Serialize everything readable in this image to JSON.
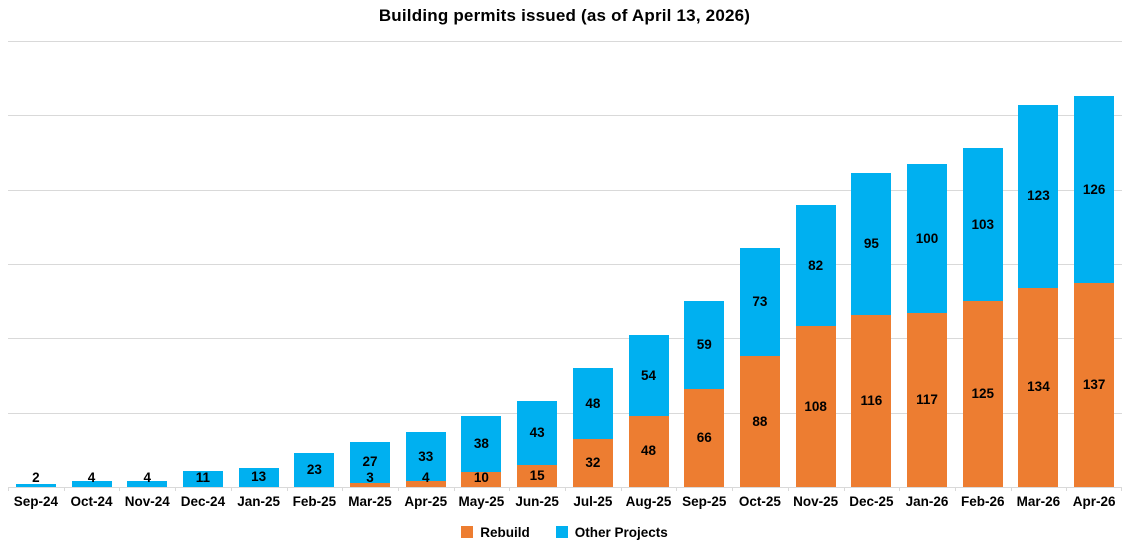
{
  "chart_data": {
    "type": "bar",
    "stacked": true,
    "title": "Building permits issued (as of April 13, 2026)",
    "categories": [
      "Sep-24",
      "Oct-24",
      "Nov-24",
      "Dec-24",
      "Jan-25",
      "Feb-25",
      "Mar-25",
      "Apr-25",
      "May-25",
      "Jun-25",
      "Jul-25",
      "Aug-25",
      "Sep-25",
      "Oct-25",
      "Nov-25",
      "Dec-25",
      "Jan-26",
      "Feb-26",
      "Mar-26",
      "Apr-26"
    ],
    "series": [
      {
        "name": "Rebuild",
        "color": "#ED7D31",
        "values": [
          0,
          0,
          0,
          0,
          0,
          0,
          3,
          4,
          10,
          15,
          32,
          48,
          66,
          88,
          108,
          116,
          117,
          125,
          134,
          137
        ]
      },
      {
        "name": "Other Projects",
        "color": "#00B0F0",
        "values": [
          2,
          4,
          4,
          11,
          13,
          23,
          27,
          33,
          38,
          43,
          48,
          54,
          59,
          73,
          82,
          95,
          100,
          103,
          123,
          126
        ]
      }
    ],
    "xlabel": "",
    "ylabel": "",
    "ylim": [
      0,
      300
    ],
    "gridline_interval": 50,
    "grid": true,
    "y_axis_tick_labels_visible": false,
    "data_labels": true,
    "legend_position": "bottom"
  },
  "colors": {
    "gridline": "#d9d9d9",
    "axis": "#d9d9d9",
    "data_label": "#000000",
    "background": "#ffffff"
  }
}
